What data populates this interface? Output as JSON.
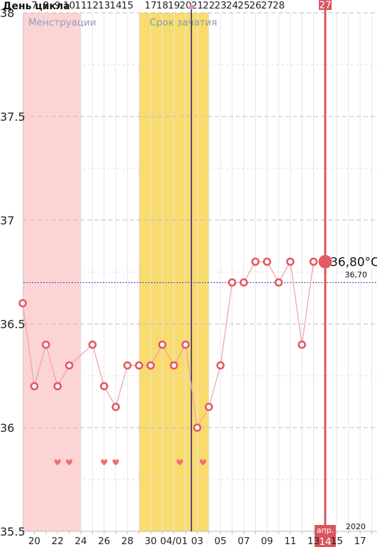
{
  "header": {
    "title": "День цикла"
  },
  "colors": {
    "menstruation_band": "#fdd3d3",
    "fertile_band": "#fadb6e",
    "line": "#f0a5a5",
    "marker": "#e25a62",
    "heart": "#ee6f74",
    "reference": "#5555cc",
    "ovulation_line": "#22207a",
    "today_line": "#d9565c"
  },
  "chart_data": {
    "type": "line",
    "title": "",
    "xlabel": "",
    "ylabel": "",
    "ylim": [
      35.5,
      38
    ],
    "y_ticks": [
      "35.5",
      "36",
      "36.5",
      "37",
      "37.5",
      "38"
    ],
    "cycle_day_labels": [
      "7",
      "8",
      "9",
      "10",
      "11",
      "12",
      "13",
      "14",
      "15",
      "",
      "17",
      "18",
      "19",
      "20",
      "21",
      "22",
      "23",
      "24",
      "25",
      "26",
      "27",
      "28"
    ],
    "cycle_day_start": 7,
    "date_labels": [
      "20",
      "22",
      "24",
      "26",
      "28",
      "30",
      "04/01",
      "03",
      "05",
      "07",
      "09",
      "11",
      "13",
      "15",
      "17"
    ],
    "date_label_days": [
      1,
      3,
      5,
      7,
      9,
      11,
      13,
      15,
      17,
      19,
      21,
      23,
      25,
      27,
      29
    ],
    "series": [
      {
        "days": [
          0,
          1,
          2,
          3,
          4,
          6,
          7,
          8,
          9,
          10,
          11,
          12,
          13,
          14,
          15,
          16,
          17,
          18,
          19,
          20,
          21,
          22,
          23,
          24,
          25
        ],
        "values": [
          36.6,
          36.2,
          36.4,
          36.2,
          36.3,
          36.4,
          36.2,
          36.1,
          36.3,
          36.3,
          36.3,
          36.4,
          36.3,
          36.4,
          36.0,
          36.1,
          36.3,
          36.7,
          36.7,
          36.8,
          36.8,
          36.7,
          36.8,
          36.4,
          36.8
        ]
      }
    ],
    "menstruation": {
      "label": "Менструации",
      "from_day": 0,
      "to_day": 5
    },
    "fertile_window": {
      "label": "Срок зачатия",
      "from_day": 10,
      "to_day": 16
    },
    "ovulation_day": 14.5,
    "intercourse_days": [
      3,
      4,
      7,
      8,
      13.5,
      15.5
    ],
    "coverline": {
      "value": 36.7,
      "label": "36,70"
    },
    "today": {
      "day": 26,
      "cycle_day": "27",
      "value_label": "36,80°C",
      "month": "апр.",
      "date": "14"
    },
    "year": "2020"
  }
}
